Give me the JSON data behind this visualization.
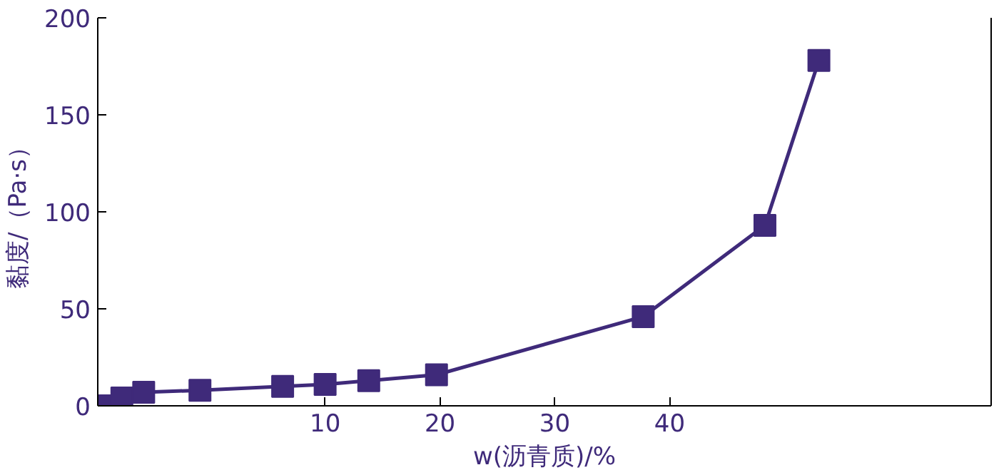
{
  "chart_data": {
    "type": "scatter",
    "xlabel": "w(沥青质)/%",
    "ylabel": "黏度/（Pa·s）",
    "x": [
      -9.5,
      -7.7,
      -5.8,
      -0.9,
      6.3,
      10,
      13.8,
      19.7,
      37.7,
      48.3,
      53.0
    ],
    "series": [
      {
        "color": "#3f2a7a",
        "marker": "square",
        "values": [
          0,
          4,
          7,
          8,
          10,
          11,
          13,
          16,
          46,
          93,
          178
        ]
      },
      {
        "type": "line",
        "color": "#3f2a7a",
        "line_style": "solid",
        "values": [
          0,
          4,
          7,
          8,
          10,
          11,
          13,
          16,
          46,
          93,
          178
        ]
      }
    ],
    "xlim": [
      -9.8,
      68
    ],
    "ylim": [
      0,
      200
    ],
    "xticks": [
      10,
      20,
      30,
      40
    ],
    "yticks": [
      0,
      50,
      100,
      150,
      200
    ]
  }
}
